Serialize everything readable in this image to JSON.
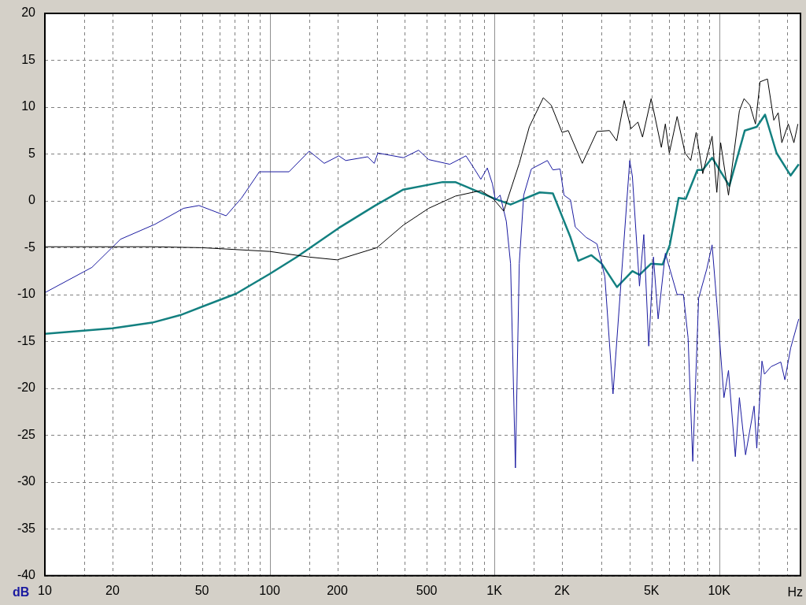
{
  "chart_data": {
    "type": "line",
    "xlabel": "Hz",
    "ylabel": "dB",
    "log": "x",
    "grid": true,
    "marker": "none",
    "line_style": "solid",
    "xlim": [
      10,
      23000
    ],
    "ylim": [
      -40,
      20
    ],
    "xticks": [
      10,
      {
        "value": 15,
        "label": null
      },
      20,
      {
        "value": 30,
        "label": null
      },
      {
        "value": 40,
        "label": null
      },
      50,
      {
        "value": 60,
        "label": null
      },
      {
        "value": 70,
        "label": null
      },
      {
        "value": 80,
        "label": null
      },
      {
        "value": 90,
        "label": null
      },
      100,
      {
        "value": 150,
        "label": null
      },
      200,
      {
        "value": 300,
        "label": null
      },
      {
        "value": 400,
        "label": null
      },
      500,
      {
        "value": 600,
        "label": null
      },
      {
        "value": 700,
        "label": null
      },
      {
        "value": 800,
        "label": null
      },
      {
        "value": 900,
        "label": null
      },
      {
        "value": 1000,
        "label": "1K"
      },
      {
        "value": 1500,
        "label": null
      },
      {
        "value": 2000,
        "label": "2K"
      },
      {
        "value": 3000,
        "label": null
      },
      {
        "value": 4000,
        "label": null
      },
      {
        "value": 5000,
        "label": "5K"
      },
      {
        "value": 6000,
        "label": null
      },
      {
        "value": 7000,
        "label": null
      },
      {
        "value": 8000,
        "label": null
      },
      {
        "value": 9000,
        "label": null
      },
      {
        "value": 10000,
        "label": "10K"
      },
      {
        "value": 15000,
        "label": null
      },
      {
        "value": 20000,
        "label": null
      }
    ],
    "yticks": [
      -40,
      -35,
      -30,
      -25,
      -20,
      -15,
      -10,
      -5,
      0,
      5,
      10,
      15,
      20
    ],
    "series": [
      {
        "color": "#000000",
        "x": [
          10,
          30,
          50,
          100,
          150,
          200,
          300,
          393,
          510,
          670,
          870,
          990,
          1100,
          1290,
          1430,
          1650,
          1790,
          2000,
          2130,
          2460,
          2860,
          3250,
          3500,
          3780,
          4050,
          4350,
          4560,
          4980,
          5530,
          5760,
          6000,
          6500,
          7050,
          7470,
          7900,
          8450,
          9300,
          9760,
          10150,
          11000,
          12300,
          12900,
          13700,
          14500,
          15200,
          16400,
          17500,
          18300,
          19000,
          20300,
          21500,
          22400
        ],
        "values": [
          -4.9,
          -4.9,
          -5.0,
          -5.4,
          -6.0,
          -6.3,
          -5.0,
          -2.6,
          -0.8,
          0.5,
          1.1,
          0.2,
          -1.1,
          4.0,
          7.9,
          11.0,
          10.2,
          7.3,
          7.5,
          4.0,
          7.4,
          7.5,
          6.4,
          10.7,
          7.7,
          8.4,
          6.8,
          10.9,
          5.7,
          8.2,
          5.1,
          9.0,
          5.1,
          4.3,
          7.3,
          2.9,
          6.9,
          0.9,
          6.2,
          0.6,
          9.6,
          10.9,
          10.2,
          8.2,
          12.7,
          13.0,
          8.6,
          9.4,
          6.2,
          8.2,
          6.2,
          8.2
        ]
      },
      {
        "color": "#1a1aa0",
        "x": [
          10,
          16.2,
          21.7,
          30.9,
          41.4,
          48.5,
          64,
          75,
          90,
          122,
          150,
          175,
          203,
          218,
          273,
          292,
          303,
          394,
          460,
          510,
          633,
          747,
          810,
          870,
          930,
          980,
          1010,
          1060,
          1130,
          1180,
          1240,
          1290,
          1350,
          1460,
          1720,
          1820,
          1960,
          2040,
          2180,
          2290,
          2560,
          2860,
          3100,
          3370,
          4000,
          4110,
          4420,
          4620,
          4860,
          5100,
          5350,
          5760,
          6500,
          6930,
          7270,
          7630,
          8100,
          8800,
          9300,
          9760,
          10500,
          11000,
          11800,
          12300,
          13100,
          14300,
          14700,
          15500,
          15900,
          17000,
          18800,
          19600,
          20800,
          22600
        ],
        "values": [
          -9.8,
          -7.1,
          -4.1,
          -2.5,
          -0.8,
          -0.5,
          -1.6,
          0.3,
          3.1,
          3.1,
          5.3,
          4.0,
          4.8,
          4.3,
          4.7,
          4.0,
          5.1,
          4.6,
          5.4,
          4.4,
          3.9,
          4.8,
          3.5,
          2.3,
          3.5,
          1.8,
          0.1,
          0.6,
          -2.2,
          -6.7,
          -28.5,
          -6.7,
          0.6,
          3.4,
          4.3,
          3.3,
          3.4,
          0.6,
          0.1,
          -2.8,
          -3.9,
          -4.6,
          -8.1,
          -20.6,
          4.3,
          2.6,
          -9.1,
          -3.6,
          -15.5,
          -6.0,
          -12.6,
          -5.6,
          -10.0,
          -10.0,
          -14.6,
          -27.8,
          -10.4,
          -7.3,
          -4.7,
          -10.9,
          -21.0,
          -18.1,
          -27.3,
          -21.0,
          -27.1,
          -21.9,
          -26.4,
          -17.1,
          -18.5,
          -17.7,
          -17.2,
          -19.1,
          -15.7,
          -12.6
        ]
      },
      {
        "color": "#138080",
        "x": [
          10,
          20,
          30,
          40,
          71,
          100,
          132,
          203,
          295,
          393,
          588,
          670,
          1010,
          1180,
          1590,
          1820,
          2180,
          2360,
          2700,
          3000,
          3510,
          4110,
          4420,
          4980,
          5600,
          6030,
          6600,
          7100,
          8000,
          8450,
          9300,
          11100,
          13000,
          14700,
          16000,
          18000,
          20800,
          22600
        ],
        "values": [
          -14.2,
          -13.6,
          -13.0,
          -12.2,
          -9.9,
          -7.8,
          -6.0,
          -2.9,
          -0.5,
          1.2,
          2.0,
          2.0,
          0.2,
          -0.4,
          0.9,
          0.8,
          -3.9,
          -6.4,
          -5.8,
          -6.7,
          -9.2,
          -7.5,
          -7.9,
          -6.7,
          -6.8,
          -4.7,
          0.3,
          0.2,
          3.3,
          3.3,
          4.6,
          1.6,
          7.5,
          7.9,
          9.2,
          5.1,
          2.7,
          3.9
        ]
      }
    ]
  }
}
